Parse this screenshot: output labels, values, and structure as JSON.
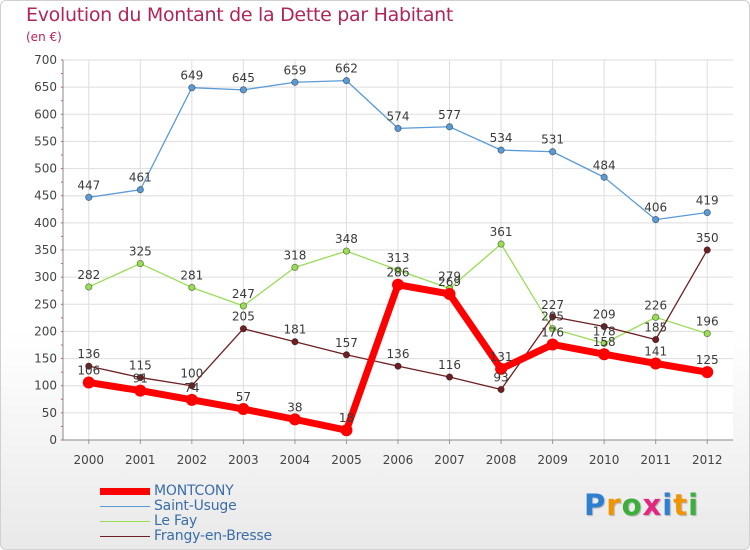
{
  "header": {
    "title": "Evolution du Montant de la Dette par Habitant",
    "unit": "(en €)"
  },
  "colors": {
    "MONTCONY": "#ff0000",
    "Saint-Usuge": "#5b9bd5",
    "Le Fay": "#99dd55",
    "Frangy-en-Bresse": "#6e1f22",
    "title": "#b0255a",
    "grid": "#dddddd"
  },
  "chart_data": {
    "type": "line",
    "x": [
      "2000",
      "2001",
      "2002",
      "2003",
      "2004",
      "2005",
      "2006",
      "2007",
      "2008",
      "2009",
      "2010",
      "2011",
      "2012"
    ],
    "ylim": [
      0,
      700
    ],
    "yticks": [
      "0",
      "50",
      "100",
      "150",
      "200",
      "250",
      "300",
      "350",
      "400",
      "450",
      "500",
      "550",
      "600",
      "650",
      "700"
    ],
    "grid": true,
    "legend_position": "bottom-left",
    "series": [
      {
        "name": "Saint-Usuge",
        "values": [
          447,
          461,
          649,
          645,
          659,
          662,
          574,
          577,
          534,
          531,
          484,
          406,
          419
        ],
        "labels": [
          "447",
          "461",
          "649",
          "645",
          "659",
          "662",
          "574",
          "577",
          "534",
          "531",
          "484",
          "406",
          "419"
        ]
      },
      {
        "name": "Le Fay",
        "values": [
          282,
          325,
          281,
          247,
          318,
          348,
          313,
          279,
          361,
          205,
          178,
          226,
          196
        ],
        "labels": [
          "282",
          "325",
          "281",
          "247",
          "318",
          "348",
          "313",
          "279",
          "361",
          "205",
          "178",
          "226",
          "196"
        ]
      },
      {
        "name": "Frangy-en-Bresse",
        "values": [
          136,
          115,
          100,
          205,
          181,
          157,
          136,
          116,
          93,
          227,
          209,
          185,
          350
        ],
        "labels": [
          "136",
          "115",
          "100",
          "205",
          "181",
          "157",
          "136",
          "116",
          "93",
          "227",
          "209",
          "185",
          "350"
        ]
      },
      {
        "name": "MONTCONY",
        "values": [
          106,
          91,
          74,
          57,
          38,
          18,
          286,
          269,
          131,
          176,
          158,
          141,
          125
        ],
        "labels": [
          "106",
          "91",
          "74",
          "57",
          "38",
          "18",
          "286",
          "269",
          "131",
          "176",
          "158",
          "141",
          "125"
        ]
      }
    ]
  },
  "legend": {
    "items": [
      "MONTCONY",
      "Saint-Usuge",
      "Le Fay",
      "Frangy-en-Bresse"
    ]
  },
  "logo": {
    "letters": [
      "P",
      "r",
      "o",
      "x",
      "i",
      "t",
      "i"
    ],
    "letter_colors": [
      "#2e7fd1",
      "#f29400",
      "#3cae3c",
      "#e5267e",
      "#2e7fd1",
      "#f29400",
      "#3cae3c"
    ]
  }
}
